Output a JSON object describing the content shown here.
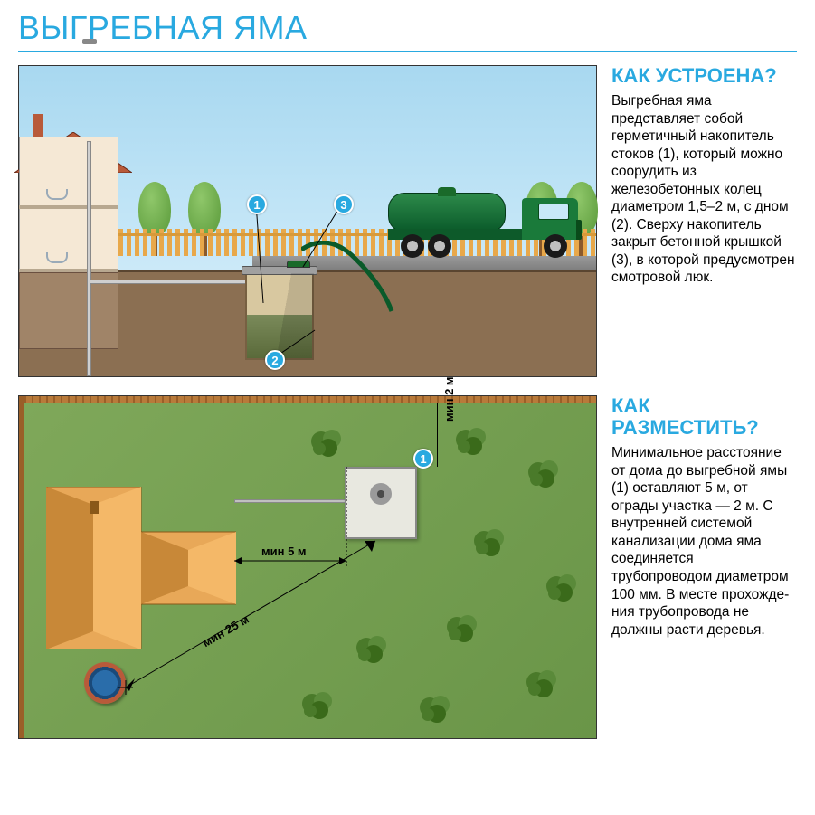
{
  "title": "ВЫГРЕБНАЯ ЯМА",
  "colors": {
    "accent": "#29a9e0",
    "sky": "#a8d8f0",
    "grass": "#7fa85a",
    "soil": "#8b6f52",
    "house_wall": "#f5e8d5",
    "house_roof": "#b85a3a",
    "fence": "#d89a3a",
    "truck_green": "#1a7a3a",
    "pit_fill": "#d8c8a0",
    "well_blue": "#2a6daa",
    "text": "#000000"
  },
  "section1": {
    "subtitle": "КАК УСТРОЕНА?",
    "body": "Выгребная яма представляет собой герметич­ный накопитель стоков (1), который можно соорудить из железобетонных колец диаметром 1,5–2 м, с дном (2). Сверху накопитель закрыт бетонной крышкой (3), в которой предус­мотрен смотровой люк.",
    "callouts": {
      "c1": "1",
      "c2": "2",
      "c3": "3"
    },
    "diagram": {
      "type": "infographic",
      "view": "cross-section-side",
      "elements": [
        "house",
        "vent_pipe",
        "sewer_pipe",
        "septic_pit",
        "fence",
        "trees",
        "road",
        "vacuum_truck"
      ],
      "ring_diameter_m": "1.5–2"
    }
  },
  "section2": {
    "subtitle": "КАК РАЗМЕСТИТЬ?",
    "body": "Минимальное расстояние от дома до выгребной ямы (1) оставляют 5 м, от ограды участ­ка — 2 м. С внут­ренней системой канализации дома яма соединяется трубопроводом диаметром 100 мм. В месте прохожде­ния трубопровода не должны расти деревья.",
    "callouts": {
      "c1": "1"
    },
    "dimensions": {
      "min_house_to_pit_m": 5,
      "min_fence_to_pit_m": 2,
      "min_well_to_pit_m": 25,
      "pipe_diameter_mm": 100,
      "label_5m": "мин 5 м",
      "label_2m": "мин 2 м",
      "label_25m": "мин 25 м"
    },
    "diagram": {
      "type": "infographic",
      "view": "top-plan",
      "elements": [
        "fence_perimeter",
        "house_plan",
        "pipe",
        "septic_pit_plan",
        "well",
        "bushes",
        "dimension_lines"
      ],
      "bushes_count": 10
    }
  }
}
